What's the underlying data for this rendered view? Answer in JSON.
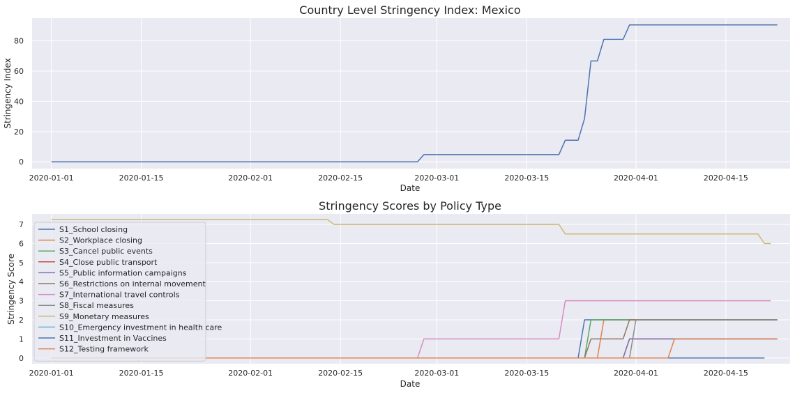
{
  "chart_data": [
    {
      "type": "line",
      "title": "Country Level Stringency Index: Mexico",
      "xlabel": "Date",
      "ylabel": "Stringency Index",
      "x_ticks": [
        "2020-01-01",
        "2020-01-15",
        "2020-02-01",
        "2020-02-15",
        "2020-03-01",
        "2020-03-15",
        "2020-04-01",
        "2020-04-15"
      ],
      "y_ticks": [
        0,
        20,
        40,
        60,
        80
      ],
      "xlim": [
        "2019-12-29",
        "2020-04-25"
      ],
      "ylim": [
        -4.5,
        95
      ],
      "grid": true,
      "series": [
        {
          "color": "#4c72b0",
          "points": [
            [
              "2020-01-01",
              0
            ],
            [
              "2020-02-27",
              0
            ],
            [
              "2020-02-28",
              4.76
            ],
            [
              "2020-03-20",
              4.76
            ],
            [
              "2020-03-21",
              14.29
            ],
            [
              "2020-03-23",
              14.29
            ],
            [
              "2020-03-24",
              28.57
            ],
            [
              "2020-03-25",
              66.67
            ],
            [
              "2020-03-26",
              66.67
            ],
            [
              "2020-03-27",
              80.95
            ],
            [
              "2020-03-30",
              80.95
            ],
            [
              "2020-03-31",
              90.48
            ],
            [
              "2020-04-23",
              90.48
            ]
          ]
        }
      ]
    },
    {
      "type": "line",
      "title": "Stringency Scores by Policy Type",
      "xlabel": "Date",
      "ylabel": "Stringency Score",
      "x_ticks": [
        "2020-01-01",
        "2020-01-15",
        "2020-02-01",
        "2020-02-15",
        "2020-03-01",
        "2020-03-15",
        "2020-04-01",
        "2020-04-15"
      ],
      "y_ticks": [
        0,
        1,
        2,
        3,
        4,
        5,
        6,
        7
      ],
      "xlim": [
        "2019-12-29",
        "2020-04-25"
      ],
      "ylim": [
        -0.3,
        7.55
      ],
      "grid": true,
      "legend_position": "upper-left",
      "series": [
        {
          "name": "S1_School closing",
          "color": "#4c72b0",
          "points": [
            [
              "2020-01-01",
              0
            ],
            [
              "2020-03-23",
              0
            ],
            [
              "2020-03-24",
              2
            ],
            [
              "2020-04-23",
              2
            ]
          ]
        },
        {
          "name": "S2_Workplace closing",
          "color": "#dd8452",
          "points": [
            [
              "2020-01-01",
              0
            ],
            [
              "2020-03-26",
              0
            ],
            [
              "2020-03-27",
              2
            ],
            [
              "2020-04-23",
              2
            ]
          ]
        },
        {
          "name": "S3_Cancel public events",
          "color": "#55a868",
          "points": [
            [
              "2020-01-01",
              0
            ],
            [
              "2020-03-24",
              0
            ],
            [
              "2020-03-25",
              2
            ],
            [
              "2020-04-23",
              2
            ]
          ]
        },
        {
          "name": "S4_Close public transport",
          "color": "#c44e52",
          "points": [
            [
              "2020-01-01",
              0
            ],
            [
              "2020-03-30",
              0
            ],
            [
              "2020-03-31",
              1
            ],
            [
              "2020-04-23",
              1
            ]
          ]
        },
        {
          "name": "S5_Public information campaigns",
          "color": "#8172b3",
          "points": [
            [
              "2020-01-01",
              0
            ],
            [
              "2020-03-30",
              0
            ],
            [
              "2020-03-31",
              1
            ],
            [
              "2020-04-23",
              1
            ]
          ]
        },
        {
          "name": "S6_Restrictions on internal movement",
          "color": "#937860",
          "points": [
            [
              "2020-01-01",
              0
            ],
            [
              "2020-03-24",
              0
            ],
            [
              "2020-03-25",
              1
            ],
            [
              "2020-03-30",
              1
            ],
            [
              "2020-03-31",
              2
            ],
            [
              "2020-04-23",
              2
            ]
          ]
        },
        {
          "name": "S7_International travel controls",
          "color": "#da8bc3",
          "points": [
            [
              "2020-01-01",
              0
            ],
            [
              "2020-02-27",
              0
            ],
            [
              "2020-02-28",
              1
            ],
            [
              "2020-03-20",
              1
            ],
            [
              "2020-03-21",
              3
            ],
            [
              "2020-04-22",
              3
            ]
          ]
        },
        {
          "name": "S8_Fiscal measures",
          "color": "#8c8c8c",
          "points": [
            [
              "2020-01-01",
              0
            ],
            [
              "2020-03-31",
              0
            ],
            [
              "2020-04-01",
              2
            ],
            [
              "2020-04-23",
              2
            ]
          ]
        },
        {
          "name": "S9_Monetary measures",
          "color": "#ccb974",
          "points": [
            [
              "2020-01-01",
              7.25
            ],
            [
              "2020-02-13",
              7.25
            ],
            [
              "2020-02-14",
              7
            ],
            [
              "2020-03-20",
              7
            ],
            [
              "2020-03-21",
              6.5
            ],
            [
              "2020-04-20",
              6.5
            ],
            [
              "2020-04-21",
              6
            ],
            [
              "2020-04-22",
              6
            ]
          ]
        },
        {
          "name": "S10_Emergency investment in health care",
          "color": "#64b5cd",
          "points": [
            [
              "2020-01-01",
              0
            ],
            [
              "2020-04-21",
              0
            ]
          ]
        },
        {
          "name": "S11_Investment in Vaccines",
          "color": "#4c72b0",
          "points": [
            [
              "2020-01-01",
              0
            ],
            [
              "2020-04-21",
              0
            ]
          ]
        },
        {
          "name": "S12_Testing framework",
          "color": "#dd8452",
          "points": [
            [
              "2020-01-01",
              0
            ],
            [
              "2020-04-06",
              0
            ],
            [
              "2020-04-07",
              1
            ],
            [
              "2020-04-23",
              1
            ]
          ]
        }
      ]
    }
  ]
}
